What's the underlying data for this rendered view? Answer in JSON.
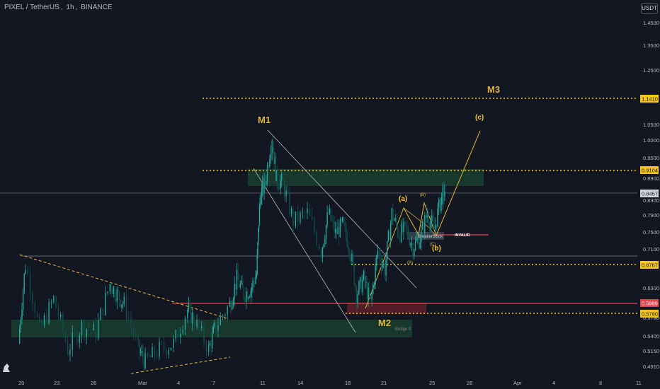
{
  "header": {
    "symbol": "PIXEL / TetherUS",
    "interval": "1h",
    "exchange": "BINANCE"
  },
  "currency_button": "USDT",
  "colors": {
    "background": "#131722",
    "candle": "#26a69a",
    "candle_dark": "#0e4f4b",
    "wave_label": "#e1b23a",
    "level_line": "#f5c518",
    "red_line": "#e0424b",
    "zone_green": "#1b4332",
    "zone_red": "#5c1d2a"
  },
  "chart_data": {
    "type": "candlestick",
    "symbol": "PIXEL/USDT",
    "timeframe": "1h",
    "y_scale": "log",
    "ylim": [
      0.48,
      1.5
    ],
    "x_ticks": [
      "20",
      "23",
      "26",
      "Mar",
      "4",
      "7",
      "11",
      "14",
      "18",
      "21",
      "25",
      "28",
      "Apr",
      "4",
      "8",
      "11"
    ],
    "y_ticks": [
      "1.4500",
      "1.3500",
      "1.2500",
      "1.0500",
      "1.0000",
      "0.9500",
      "0.8900",
      "0.8300",
      "0.7900",
      "0.7500",
      "0.7100",
      "0.6300",
      "0.5780",
      "0.5400",
      "0.5150",
      "0.4910"
    ],
    "price_tags": [
      "1.1410",
      "0.9104",
      "0.8457",
      "0.6767",
      "0.5989",
      "0.5780"
    ],
    "price_path": [
      [
        0,
        0.53
      ],
      [
        1,
        0.68
      ],
      [
        3,
        0.55
      ],
      [
        5,
        0.61
      ],
      [
        7,
        0.52
      ],
      [
        9,
        0.56
      ],
      [
        11,
        0.55
      ],
      [
        13,
        0.64
      ],
      [
        14,
        0.62
      ],
      [
        15,
        0.6
      ],
      [
        17,
        0.52
      ],
      [
        18,
        0.5
      ],
      [
        20,
        0.52
      ],
      [
        22,
        0.53
      ],
      [
        24,
        0.59
      ],
      [
        25,
        0.57
      ],
      [
        27,
        0.52
      ],
      [
        28,
        0.56
      ],
      [
        30,
        0.6
      ],
      [
        31,
        0.65
      ],
      [
        32,
        0.62
      ],
      [
        33,
        0.63
      ],
      [
        33.8,
        0.66
      ],
      [
        34.3,
        0.84
      ],
      [
        35,
        0.88
      ],
      [
        36,
        1.02
      ],
      [
        36.6,
        0.89
      ],
      [
        37.5,
        0.88
      ],
      [
        39,
        0.78
      ],
      [
        41,
        0.8
      ],
      [
        43,
        0.71
      ],
      [
        44,
        0.8
      ],
      [
        45,
        0.75
      ],
      [
        46,
        0.77
      ],
      [
        47,
        0.72
      ],
      [
        48,
        0.62
      ],
      [
        49,
        0.65
      ],
      [
        50,
        0.6
      ],
      [
        51,
        0.71
      ],
      [
        52,
        0.67
      ],
      [
        53,
        0.8
      ],
      [
        54,
        0.75
      ],
      [
        55,
        0.76
      ],
      [
        56,
        0.72
      ],
      [
        57,
        0.74
      ],
      [
        58,
        0.8
      ],
      [
        59,
        0.76
      ],
      [
        60,
        0.84
      ],
      [
        60.5,
        0.86
      ]
    ],
    "annotations": {
      "wave_labels": [
        "M1",
        "M2",
        "M3",
        "(a)",
        "(b)",
        "(c)",
        "(B)",
        "(C)",
        "(A)"
      ],
      "text_labels": [
        "Breakerblock",
        "INVALID",
        "Bridge 0"
      ]
    },
    "levels": [
      1.141,
      0.9104,
      0.8457,
      0.6767,
      0.5989,
      0.578
    ],
    "zones": [
      {
        "kind": "green",
        "from": 0.868,
        "to": 0.918
      },
      {
        "kind": "green",
        "from": 0.545,
        "to": 0.572
      },
      {
        "kind": "red",
        "from": 0.577,
        "to": 0.597
      },
      {
        "kind": "grey",
        "from": 0.733,
        "to": 0.751
      }
    ],
    "grid": false,
    "legend": "none"
  }
}
